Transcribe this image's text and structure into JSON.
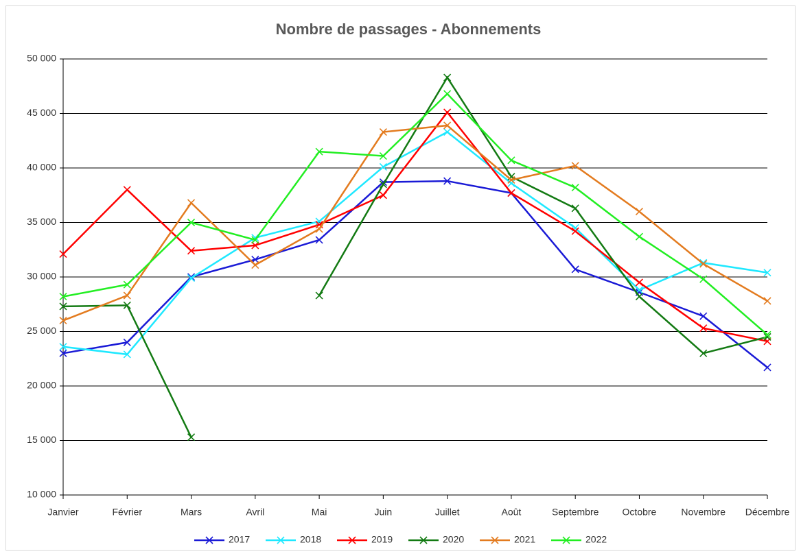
{
  "chart_data": {
    "type": "line",
    "title": "Nombre de passages  - Abonnements",
    "categories": [
      "Janvier",
      "Février",
      "Mars",
      "Avril",
      "Mai",
      "Juin",
      "Juillet",
      "Août",
      "Septembre",
      "Octobre",
      "Novembre",
      "Décembre"
    ],
    "series": [
      {
        "name": "2017",
        "color": "#1a1ad6",
        "values": [
          23000,
          24000,
          30000,
          31600,
          33400,
          38700,
          38800,
          37700,
          30700,
          28600,
          26400,
          21700
        ]
      },
      {
        "name": "2018",
        "color": "#1ee8ff",
        "values": [
          23600,
          22900,
          29900,
          33600,
          35100,
          40100,
          43300,
          38600,
          34500,
          28800,
          31300,
          30400
        ]
      },
      {
        "name": "2019",
        "color": "#ff0000",
        "values": [
          32100,
          38000,
          32400,
          32900,
          34800,
          37500,
          45100,
          37700,
          34200,
          29500,
          25300,
          24100
        ]
      },
      {
        "name": "2020",
        "color": "#137a13",
        "values": [
          27300,
          27400,
          15300,
          null,
          28300,
          38500,
          48300,
          39200,
          36300,
          28200,
          23000,
          24500
        ]
      },
      {
        "name": "2021",
        "color": "#e37b1f",
        "values": [
          26000,
          28300,
          36800,
          31100,
          34400,
          43300,
          43900,
          38900,
          40200,
          36000,
          31200,
          27800
        ]
      },
      {
        "name": "2022",
        "color": "#22ee22",
        "values": [
          28200,
          29300,
          35000,
          33400,
          41500,
          41100,
          46800,
          40700,
          38200,
          33700,
          29800,
          24700
        ]
      }
    ],
    "ylim": [
      10000,
      50000
    ],
    "yticks": [
      {
        "value": 10000,
        "label": "10 000"
      },
      {
        "value": 15000,
        "label": "15 000"
      },
      {
        "value": 20000,
        "label": "20 000"
      },
      {
        "value": 25000,
        "label": "25 000"
      },
      {
        "value": 30000,
        "label": "30 000"
      },
      {
        "value": 35000,
        "label": "35 000"
      },
      {
        "value": 40000,
        "label": "40 000"
      },
      {
        "value": 45000,
        "label": "45 000"
      },
      {
        "value": 50000,
        "label": "50 000"
      }
    ],
    "grid": true,
    "legend": "bottom"
  }
}
